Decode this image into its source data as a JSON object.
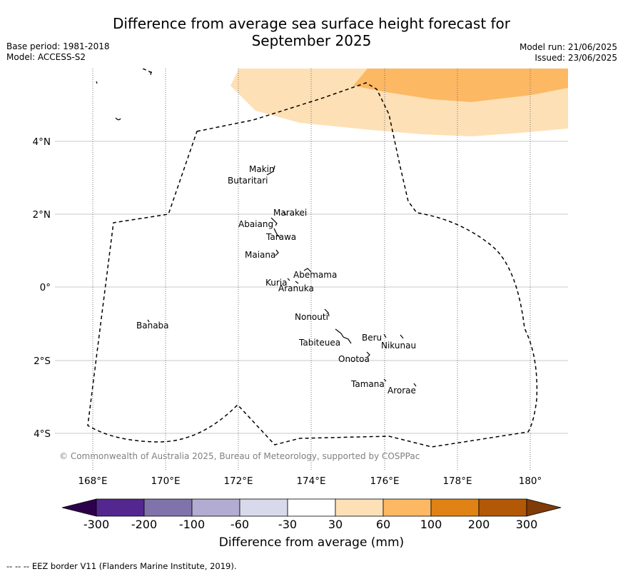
{
  "title_line1": "Difference from average sea surface height forecast for",
  "title_line2": "September 2025",
  "meta_left": [
    "Base period: 1981-2018",
    "Model: ACCESS-S2"
  ],
  "meta_right": [
    "Model run: 21/06/2025",
    "Issued: 23/06/2025"
  ],
  "lon_ticks": [
    "168°E",
    "170°E",
    "172°E",
    "174°E",
    "176°E",
    "178°E",
    "180°"
  ],
  "lat_ticks": [
    "4°N",
    "2°N",
    "0°",
    "2°S",
    "4°S"
  ],
  "places": [
    "Makin",
    "Butaritari",
    "Marakei",
    "Abaiang",
    "Tarawa",
    "Maiana",
    "Abemama",
    "Kuria",
    "Aranuka",
    "Nonouti",
    "Banaba",
    "Beru",
    "Nikunau",
    "Tabiteuea",
    "Onotoa",
    "Tamana",
    "Arorae"
  ],
  "copyright": "© Commonwealth of Australia 2025, Bureau of Meteorology, supported by COSPPac",
  "colorbar": {
    "ticks": [
      "-300",
      "-200",
      "-100",
      "-60",
      "-30",
      "30",
      "60",
      "100",
      "200",
      "300"
    ],
    "colors": [
      "#54278f",
      "#8073ac",
      "#b2abd2",
      "#d8daeb",
      "#ffffff",
      "#fee0b6",
      "#fdb863",
      "#e08214",
      "#b35806"
    ],
    "under_color": "#2d004b",
    "over_color": "#7f3b08",
    "label": "Difference from average (mm)"
  },
  "eez_note": "--  --  -- EEZ border V11 (Flanders Marine Institute, 2019)."
}
